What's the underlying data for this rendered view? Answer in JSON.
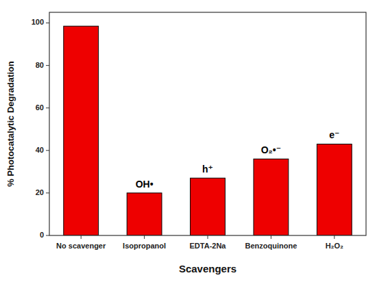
{
  "chart_data": {
    "type": "bar",
    "categories": [
      "No scavenger",
      "Isopropanol",
      "EDTA-2Na",
      "Benzoquinone",
      "H₂O₂"
    ],
    "values": [
      98.5,
      20.0,
      27.0,
      36.0,
      43.0
    ],
    "color": "#ee0000",
    "annotations": [
      null,
      "OH•",
      "h⁺",
      "O₂•⁻",
      "e⁻"
    ],
    "xlabel": "Scavengers",
    "ylabel": "% Photocatalytic Degradation",
    "ylim": [
      0,
      105
    ],
    "yticks": [
      0,
      20,
      40,
      60,
      80,
      100
    ],
    "grid": false
  }
}
